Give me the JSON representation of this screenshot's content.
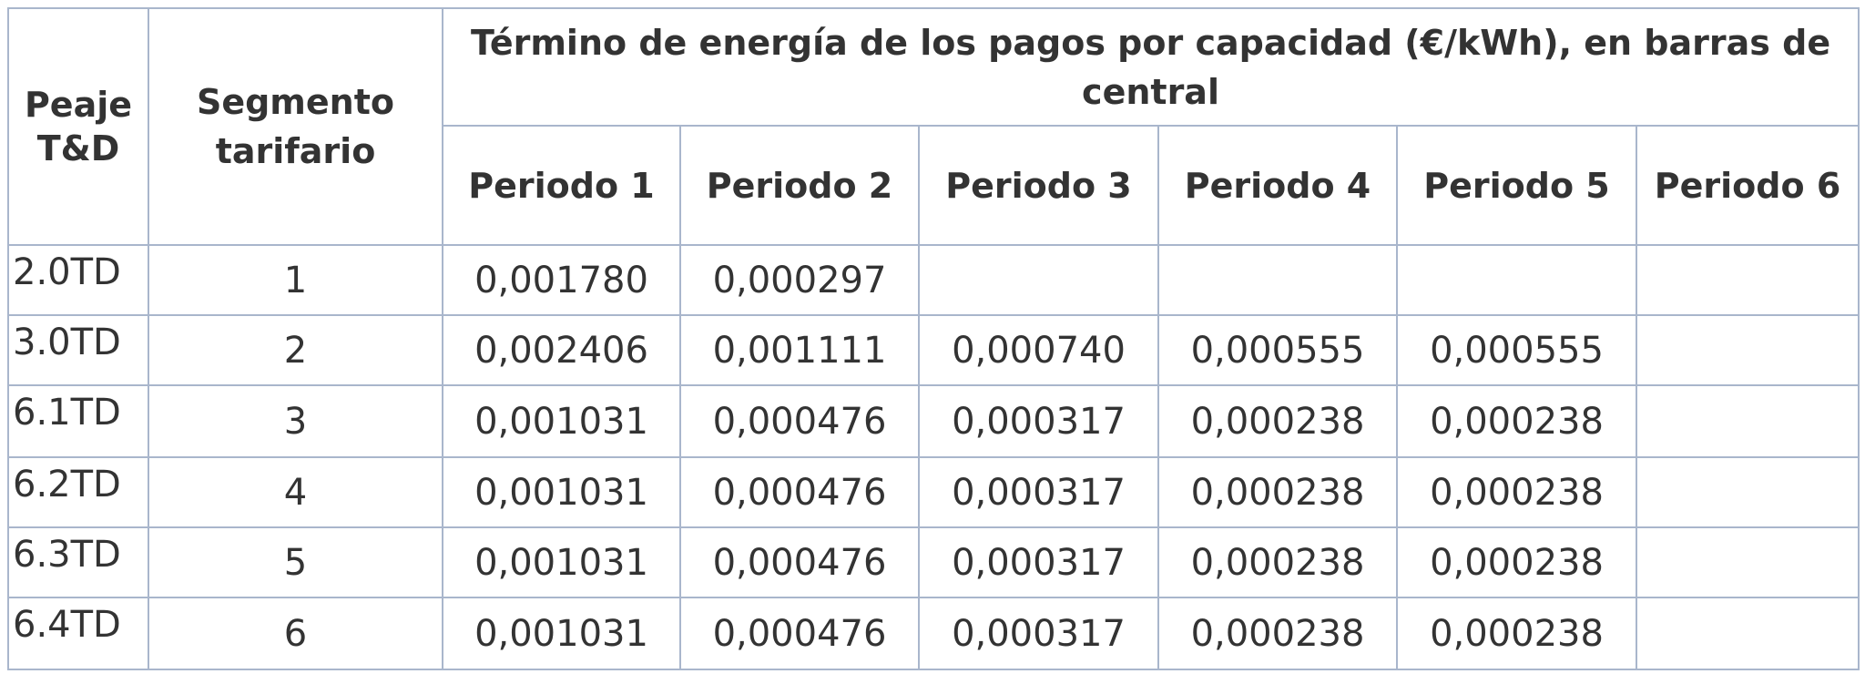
{
  "table": {
    "header": {
      "peaje": "Peaje T&D",
      "segmento": "Segmento tarifario",
      "group": "Término de energía de los pagos por capacidad (€/kWh), en barras de central",
      "periods": [
        "Periodo 1",
        "Periodo 2",
        "Periodo 3",
        "Periodo 4",
        "Periodo 5",
        "Periodo 6"
      ]
    },
    "rows": [
      {
        "peaje": "2.0TD",
        "segmento": "1",
        "values": [
          "0,001780",
          "0,000297"
        ]
      },
      {
        "peaje": "3.0TD",
        "segmento": "2",
        "values": [
          "0,002406",
          "0,001111",
          "0,000740",
          "0,000555",
          "0,000555"
        ]
      },
      {
        "peaje": "6.1TD",
        "segmento": "3",
        "values": [
          "0,001031",
          "0,000476",
          "0,000317",
          "0,000238",
          "0,000238"
        ]
      },
      {
        "peaje": "6.2TD",
        "segmento": "4",
        "values": [
          "0,001031",
          "0,000476",
          "0,000317",
          "0,000238",
          "0,000238"
        ]
      },
      {
        "peaje": "6.3TD",
        "segmento": "5",
        "values": [
          "0,001031",
          "0,000476",
          "0,000317",
          "0,000238",
          "0,000238"
        ]
      },
      {
        "peaje": "6.4TD",
        "segmento": "6",
        "values": [
          "0,001031",
          "0,000476",
          "0,000317",
          "0,000238",
          "0,000238"
        ]
      }
    ]
  }
}
